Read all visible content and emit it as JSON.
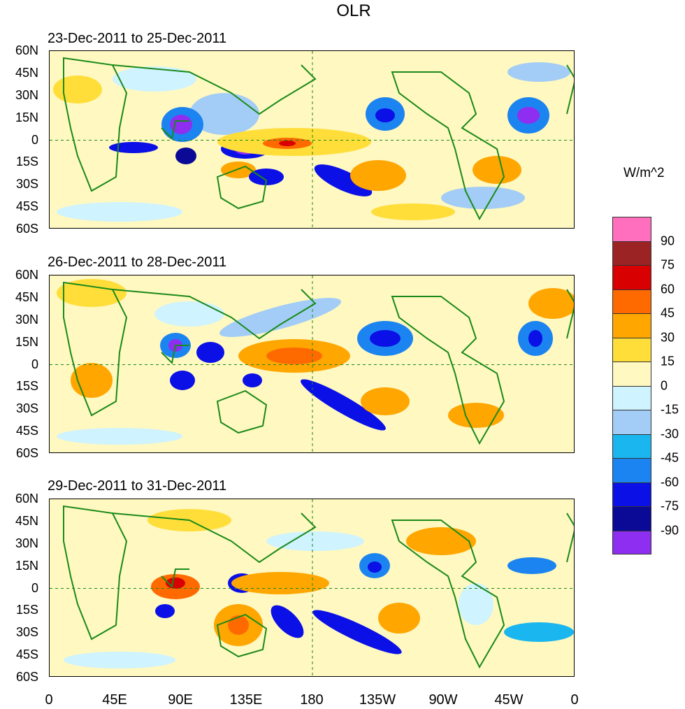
{
  "figure": {
    "title": "OLR",
    "units_label": "W/m^2",
    "panels": [
      {
        "title": "23-Dec-2011 to 25-Dec-2011"
      },
      {
        "title": "26-Dec-2011 to 28-Dec-2011"
      },
      {
        "title": "29-Dec-2011 to 31-Dec-2011"
      }
    ],
    "lat_labels": [
      "60N",
      "45N",
      "30N",
      "15N",
      "0",
      "15S",
      "30S",
      "45S",
      "60S"
    ],
    "lon_labels": [
      "0",
      "45E",
      "90E",
      "135E",
      "180",
      "135W",
      "90W",
      "45W",
      "0"
    ],
    "colorbar": {
      "labels": [
        "90",
        "75",
        "60",
        "45",
        "30",
        "15",
        "0",
        "-15",
        "-30",
        "-45",
        "-60",
        "-75",
        "-90"
      ],
      "colors": [
        "#ff6fbd",
        "#9b2323",
        "#d80000",
        "#ff6a00",
        "#ffa600",
        "#ffde3a",
        "#fff8c0",
        "#cff3ff",
        "#a3cdf6",
        "#1ab6ef",
        "#1c84f0",
        "#0a10e6",
        "#0a0a97",
        "#8e2ef0"
      ]
    }
  }
}
